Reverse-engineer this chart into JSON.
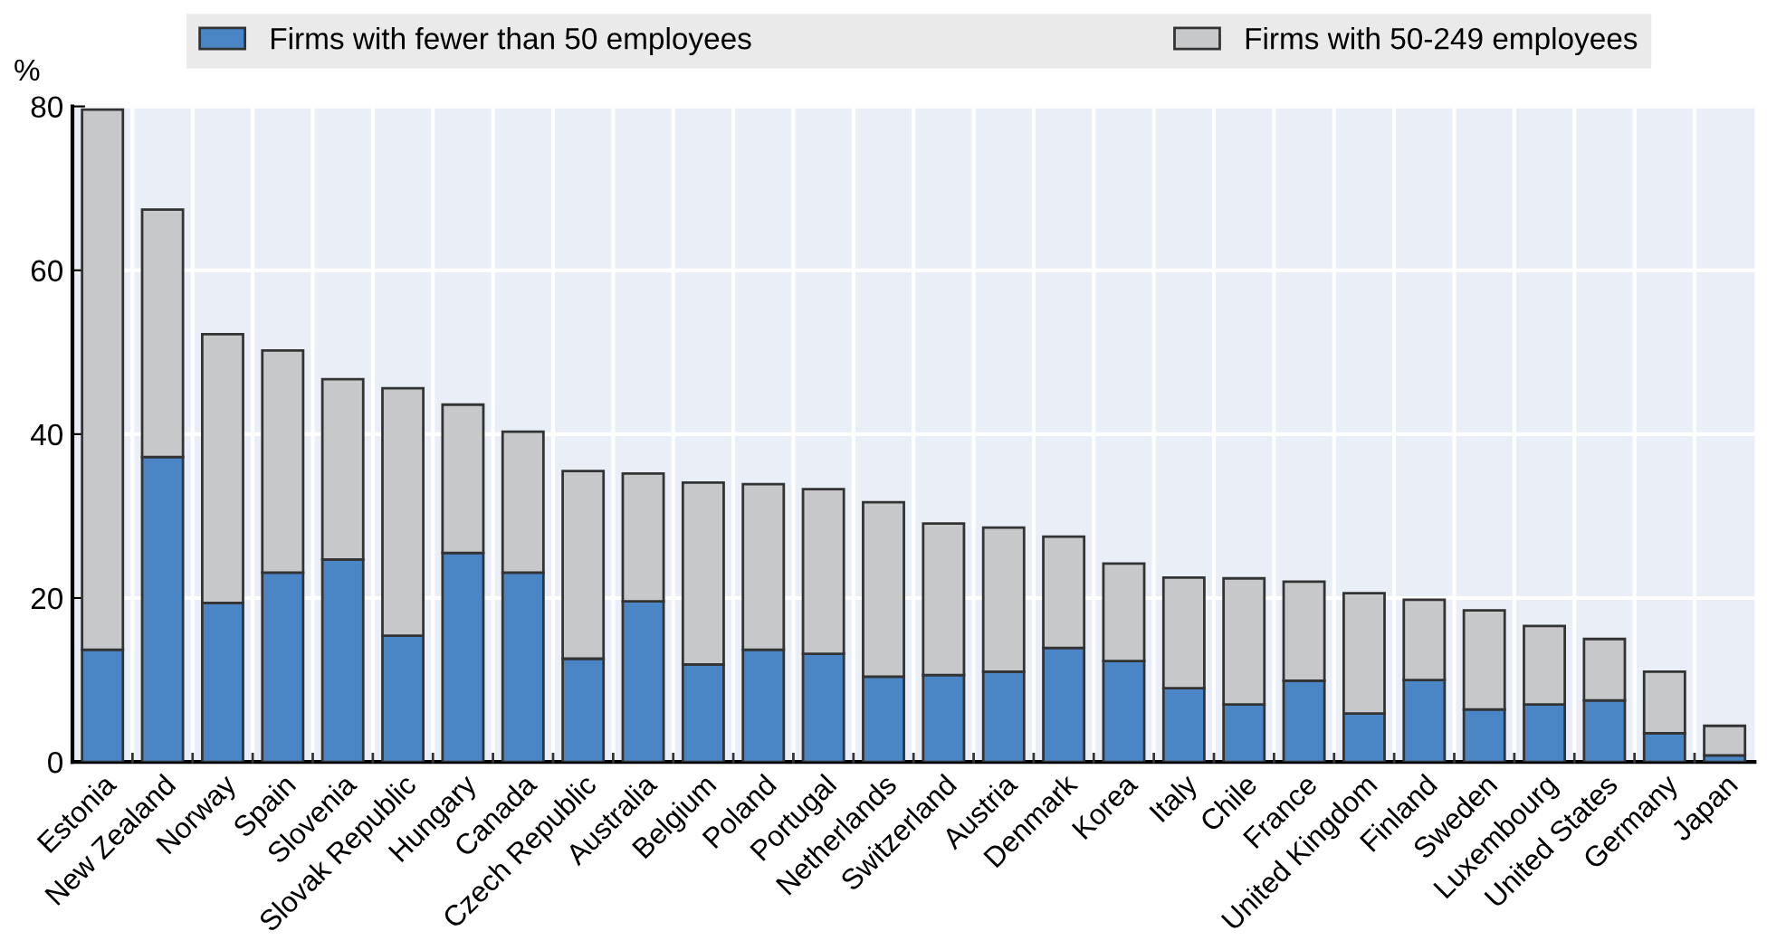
{
  "chart_data": {
    "type": "bar",
    "stacked": true,
    "ylabel": "%",
    "categories": [
      "Estonia",
      "New Zealand",
      "Norway",
      "Spain",
      "Slovenia",
      "Slovak Republic",
      "Hungary",
      "Canada",
      "Czech Republic",
      "Australia",
      "Belgium",
      "Poland",
      "Portugal",
      "Netherlands",
      "Switzerland",
      "Austria",
      "Denmark",
      "Korea",
      "Italy",
      "Chile",
      "France",
      "United Kingdom",
      "Finland",
      "Sweden",
      "Luxembourg",
      "United States",
      "Germany",
      "Japan"
    ],
    "series": [
      {
        "name": "Firms with fewer than 50 employees",
        "color": "#4a86c6",
        "values": [
          13.7,
          37.2,
          19.4,
          23.1,
          24.7,
          15.4,
          25.5,
          23.1,
          12.6,
          19.6,
          11.9,
          13.7,
          13.2,
          10.4,
          10.6,
          11.0,
          13.9,
          12.3,
          9.0,
          7.0,
          9.9,
          5.9,
          10.0,
          6.4,
          7.0,
          7.5,
          3.5,
          0.8
        ]
      },
      {
        "name": "Firms with 50-249 employees",
        "color": "#c7c8ca",
        "values": [
          65.9,
          30.2,
          32.8,
          27.1,
          22.0,
          30.2,
          18.1,
          17.2,
          22.9,
          15.6,
          22.2,
          20.2,
          20.1,
          21.3,
          18.5,
          17.6,
          13.6,
          11.9,
          13.5,
          15.4,
          12.1,
          14.7,
          9.8,
          12.1,
          9.6,
          7.5,
          7.5,
          3.6
        ]
      }
    ],
    "ylim": [
      0,
      80
    ],
    "yticks": [
      0,
      20,
      40,
      60,
      80
    ],
    "grid": true,
    "legend": "top"
  }
}
